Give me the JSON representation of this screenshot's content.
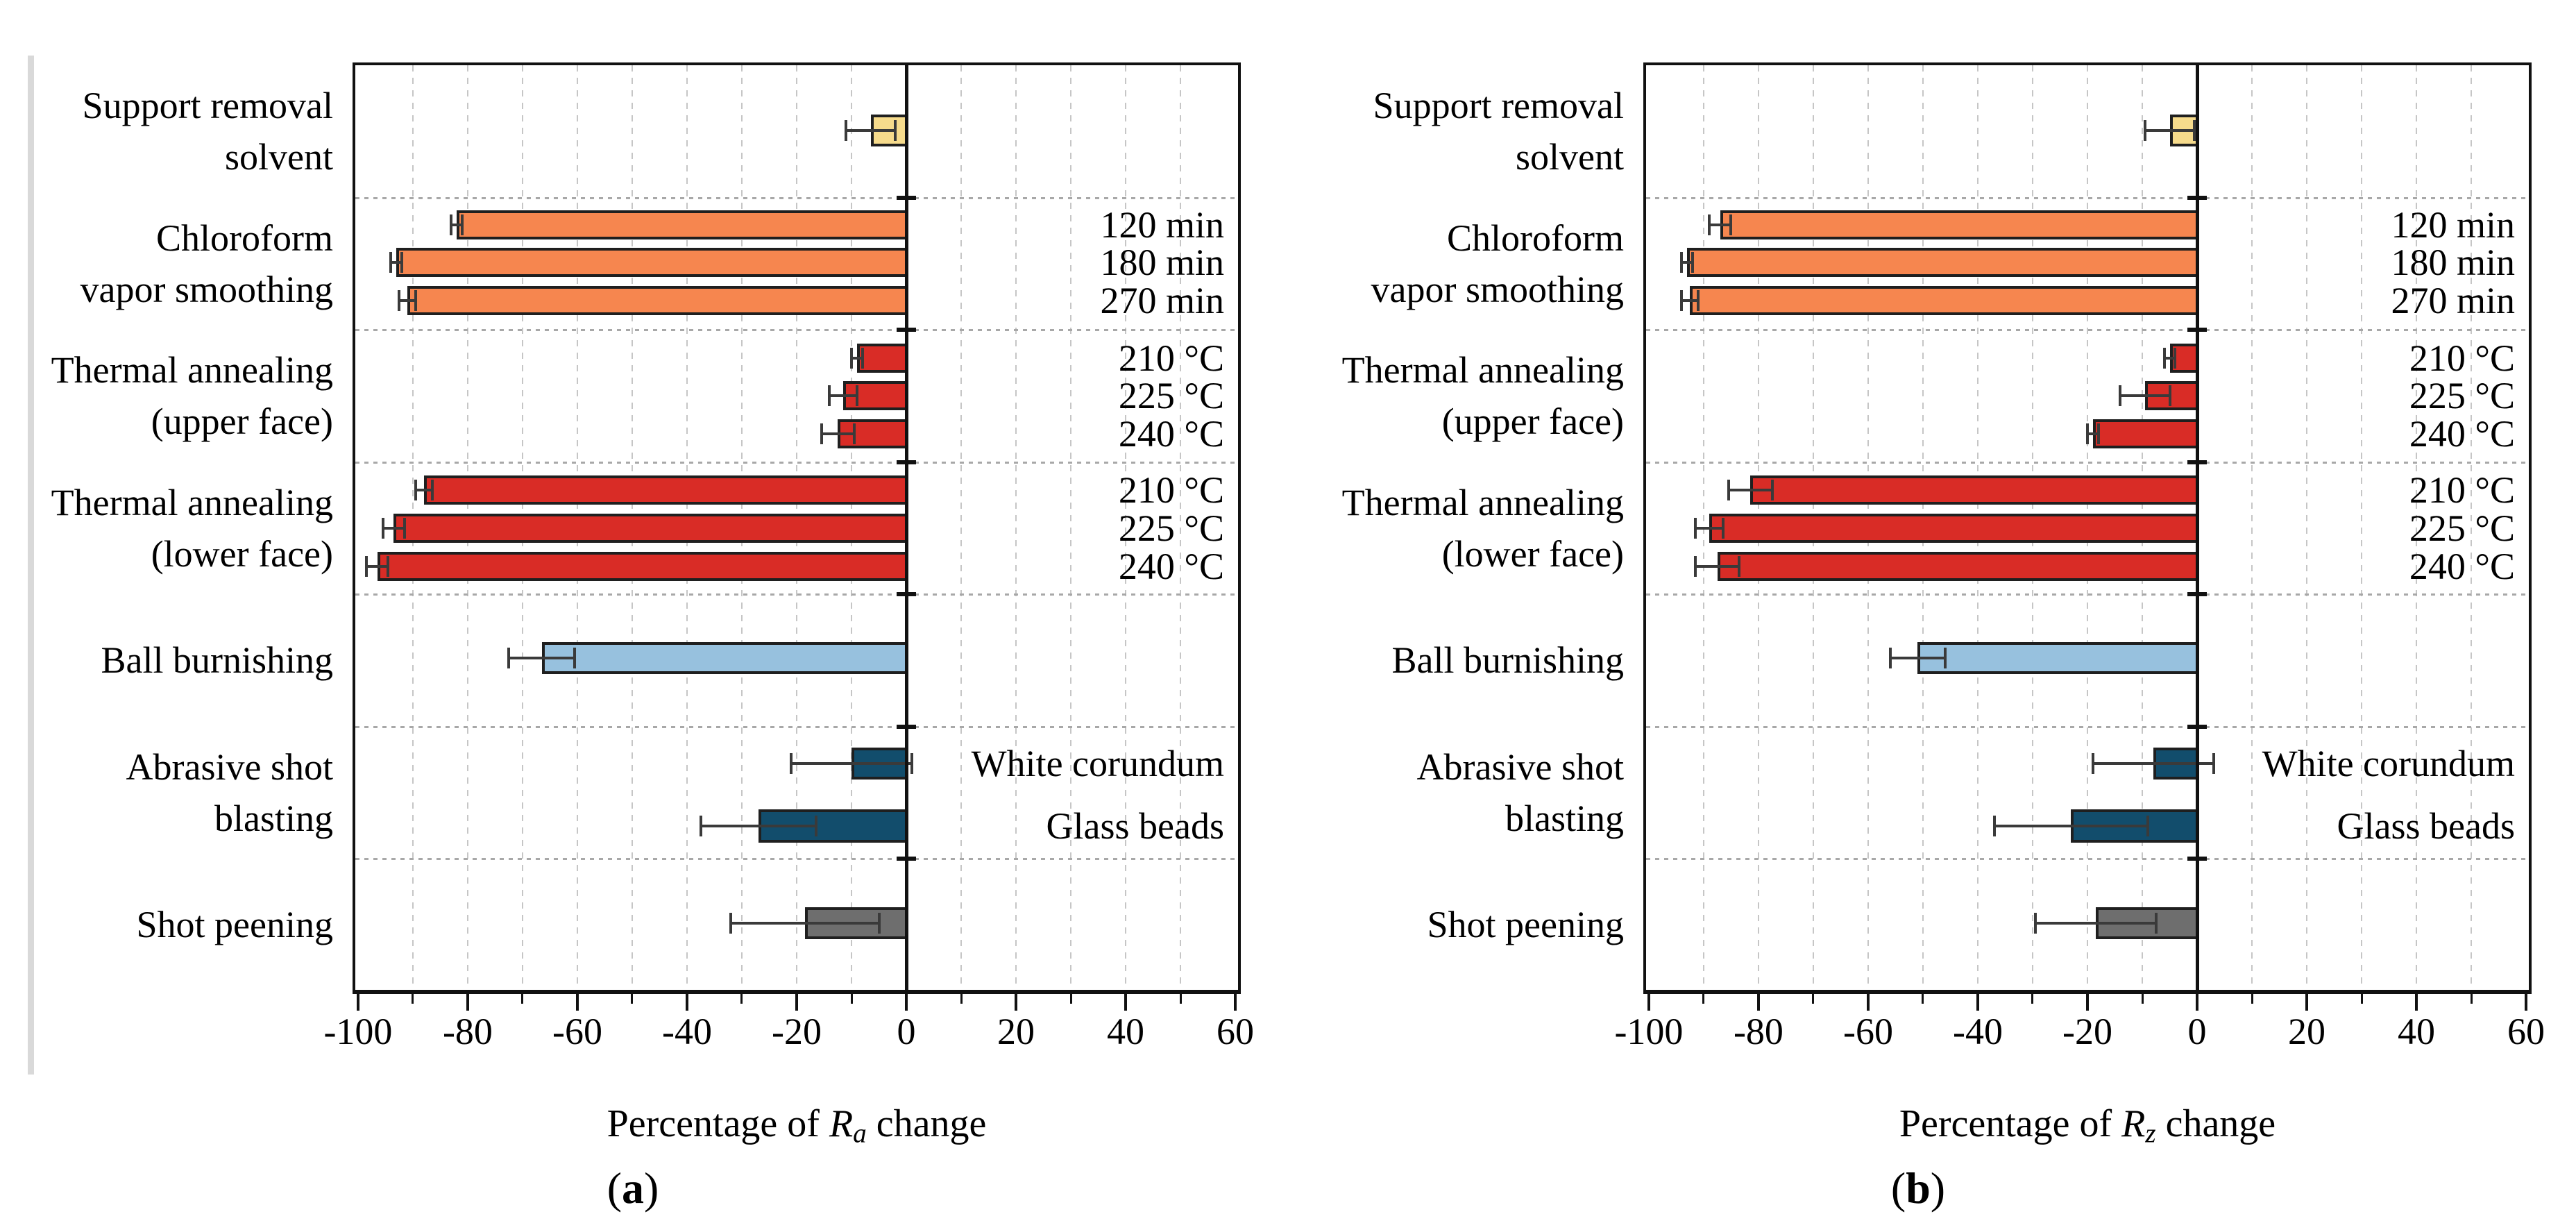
{
  "colors": {
    "solvent": "#F6DB8C",
    "chloroform": "#F6864F",
    "thermal": "#D92C26",
    "burnishing": "#97C1DE",
    "blasting": "#124D6C",
    "peening": "#6E6E6E",
    "bar_border": "#1F1F1F",
    "error_bar": "#3A3A3A",
    "axis": "#111111",
    "gridline": "#C6C6C6",
    "separator": "#A8A8A8",
    "text": "#000000",
    "page_strip": "#D9D9D9"
  },
  "chart_data": [
    {
      "type": "bar",
      "orientation": "horizontal",
      "caption": {
        "open": "(",
        "letter": "a",
        "close": ")"
      },
      "axis_title": {
        "prefix": "Percentage of ",
        "symbol": "R",
        "subscript": "a",
        "suffix": " change"
      },
      "xlabel_plain": "Percentage of Ra change",
      "xlim": [
        -100.5,
        60.5
      ],
      "xticks": [
        -100,
        -80,
        -60,
        -40,
        -20,
        0,
        20,
        40,
        60
      ],
      "xtick_labels": [
        "-100",
        "-80",
        "-60",
        "-40",
        "-20",
        "0",
        "20",
        "40",
        "60"
      ],
      "minor_tick_step": 10,
      "grid": "dashed vertical every 10 units, dotted horizontal category separators",
      "groups": [
        {
          "category_lines": [
            "Support removal",
            "solvent"
          ],
          "bars": [
            {
              "series": "Support removal solvent",
              "value": -6.5,
              "error": 4.5,
              "color_key": "solvent"
            }
          ]
        },
        {
          "category_lines": [
            "Chloroform",
            "vapor smoothing"
          ],
          "bars": [
            {
              "series": "120 min",
              "value": -82,
              "error": 1,
              "color_key": "chloroform"
            },
            {
              "series": "180 min",
              "value": -93,
              "error": 1,
              "color_key": "chloroform"
            },
            {
              "series": "270 min",
              "value": -91,
              "error": 1.5,
              "color_key": "chloroform"
            }
          ]
        },
        {
          "category_lines": [
            "Thermal annealing",
            "(upper face)"
          ],
          "bars": [
            {
              "series": "210 °C",
              "value": -9,
              "error": 1,
              "color_key": "thermal"
            },
            {
              "series": "225 °C",
              "value": -11.5,
              "error": 2.5,
              "color_key": "thermal"
            },
            {
              "series": "240 °C",
              "value": -12.5,
              "error": 3,
              "color_key": "thermal"
            }
          ]
        },
        {
          "category_lines": [
            "Thermal annealing",
            "(lower face)"
          ],
          "bars": [
            {
              "series": "210 °C",
              "value": -88,
              "error": 1.5,
              "color_key": "thermal"
            },
            {
              "series": "225 °C",
              "value": -93.5,
              "error": 2,
              "color_key": "thermal"
            },
            {
              "series": "240 °C",
              "value": -96.5,
              "error": 2,
              "color_key": "thermal"
            }
          ]
        },
        {
          "category_lines": [
            "Ball burnishing"
          ],
          "bars": [
            {
              "series": "Ball burnishing",
              "value": -66.5,
              "error": 6,
              "color_key": "burnishing"
            }
          ]
        },
        {
          "category_lines": [
            "Abrasive shot",
            "blasting"
          ],
          "bars": [
            {
              "series": "White corundum",
              "value": -10,
              "error": 11,
              "color_key": "blasting"
            },
            {
              "series": "Glass beads",
              "value": -27,
              "error": 10.5,
              "color_key": "blasting"
            }
          ]
        },
        {
          "category_lines": [
            "Shot peening"
          ],
          "bars": [
            {
              "series": "Shot peening",
              "value": -18.5,
              "error": 13.5,
              "color_key": "peening"
            }
          ]
        }
      ]
    },
    {
      "type": "bar",
      "orientation": "horizontal",
      "caption": {
        "open": "(",
        "letter": "b",
        "close": ")"
      },
      "axis_title": {
        "prefix": "Percentage of ",
        "symbol": "R",
        "subscript": "z",
        "suffix": " change"
      },
      "xlabel_plain": "Percentage of Rz change",
      "xlim": [
        -100.5,
        60.5
      ],
      "xticks": [
        -100,
        -80,
        -60,
        -40,
        -20,
        0,
        20,
        40,
        60
      ],
      "xtick_labels": [
        "-100",
        "-80",
        "-60",
        "-40",
        "-20",
        "0",
        "20",
        "40",
        "60"
      ],
      "minor_tick_step": 10,
      "grid": "dashed vertical every 10 units, dotted horizontal category separators",
      "groups": [
        {
          "category_lines": [
            "Support removal",
            "solvent"
          ],
          "bars": [
            {
              "series": "Support removal solvent",
              "value": -5,
              "error": 4.5,
              "color_key": "solvent"
            }
          ]
        },
        {
          "category_lines": [
            "Chloroform",
            "vapor smoothing"
          ],
          "bars": [
            {
              "series": "120 min",
              "value": -87,
              "error": 2,
              "color_key": "chloroform"
            },
            {
              "series": "180 min",
              "value": -93,
              "error": 1,
              "color_key": "chloroform"
            },
            {
              "series": "270 min",
              "value": -92.5,
              "error": 1.5,
              "color_key": "chloroform"
            }
          ]
        },
        {
          "category_lines": [
            "Thermal annealing",
            "(upper face)"
          ],
          "bars": [
            {
              "series": "210 °C",
              "value": -5,
              "error": 1,
              "color_key": "thermal"
            },
            {
              "series": "225 °C",
              "value": -9.5,
              "error": 4.5,
              "color_key": "thermal"
            },
            {
              "series": "240 °C",
              "value": -19,
              "error": 1,
              "color_key": "thermal"
            }
          ]
        },
        {
          "category_lines": [
            "Thermal annealing",
            "(lower face)"
          ],
          "bars": [
            {
              "series": "210 °C",
              "value": -81.5,
              "error": 4,
              "color_key": "thermal"
            },
            {
              "series": "225 °C",
              "value": -89,
              "error": 2.5,
              "color_key": "thermal"
            },
            {
              "series": "240 °C",
              "value": -87.5,
              "error": 4,
              "color_key": "thermal"
            }
          ]
        },
        {
          "category_lines": [
            "Ball burnishing"
          ],
          "bars": [
            {
              "series": "Ball burnishing",
              "value": -51,
              "error": 5,
              "color_key": "burnishing"
            }
          ]
        },
        {
          "category_lines": [
            "Abrasive shot",
            "blasting"
          ],
          "bars": [
            {
              "series": "White corundum",
              "value": -8,
              "error": 11,
              "color_key": "blasting"
            },
            {
              "series": "Glass beads",
              "value": -23,
              "error": 14,
              "color_key": "blasting"
            }
          ]
        },
        {
          "category_lines": [
            "Shot peening"
          ],
          "bars": [
            {
              "series": "Shot peening",
              "value": -18.5,
              "error": 11,
              "color_key": "peening"
            }
          ]
        }
      ]
    }
  ]
}
